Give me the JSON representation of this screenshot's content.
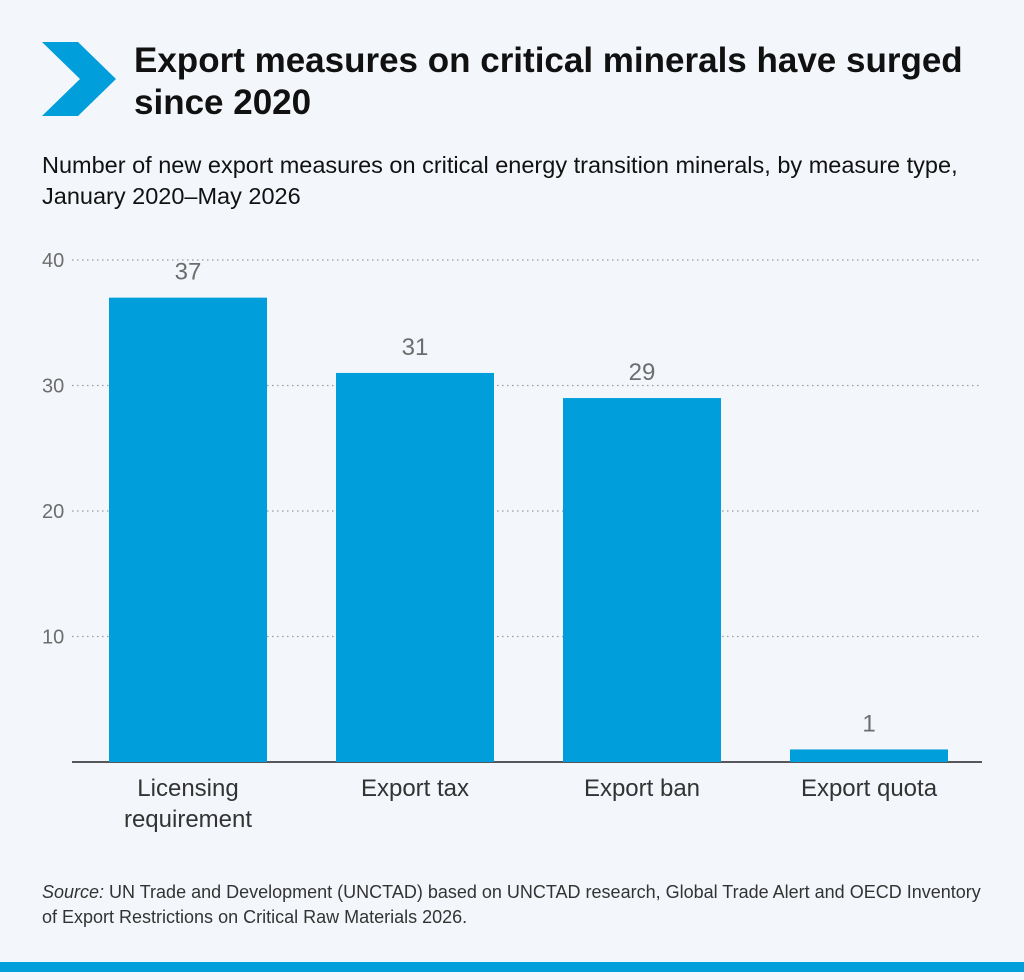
{
  "header": {
    "title": "Export measures on critical minerals have surged since 2020",
    "subtitle": "Number of new export measures on critical energy transition minerals, by measure type, January 2020–May 2026"
  },
  "colors": {
    "accent": "#009edb",
    "bar": "#009edb",
    "background": "#f3f7fb"
  },
  "icons": {
    "header": "chevron-right-icon"
  },
  "chart_data": {
    "type": "bar",
    "categories": [
      "Licensing requirement",
      "Export tax",
      "Export ban",
      "Export quota"
    ],
    "category_lines": [
      [
        "Licensing",
        "requirement"
      ],
      [
        "Export tax"
      ],
      [
        "Export ban"
      ],
      [
        "Export quota"
      ]
    ],
    "values": [
      37,
      31,
      29,
      1
    ],
    "title": "Export measures on critical minerals have surged since 2020",
    "xlabel": "",
    "ylabel": "",
    "ylim": [
      0,
      40
    ],
    "yticks": [
      10,
      20,
      30,
      40
    ],
    "grid": true,
    "legend": false,
    "data_labels": true
  },
  "footer": {
    "source_prefix": "Source:",
    "source_text": " UN Trade and Development (UNCTAD) based on UNCTAD research, Global Trade Alert and OECD Inventory of Export Restrictions on Critical Raw Materials 2026."
  }
}
